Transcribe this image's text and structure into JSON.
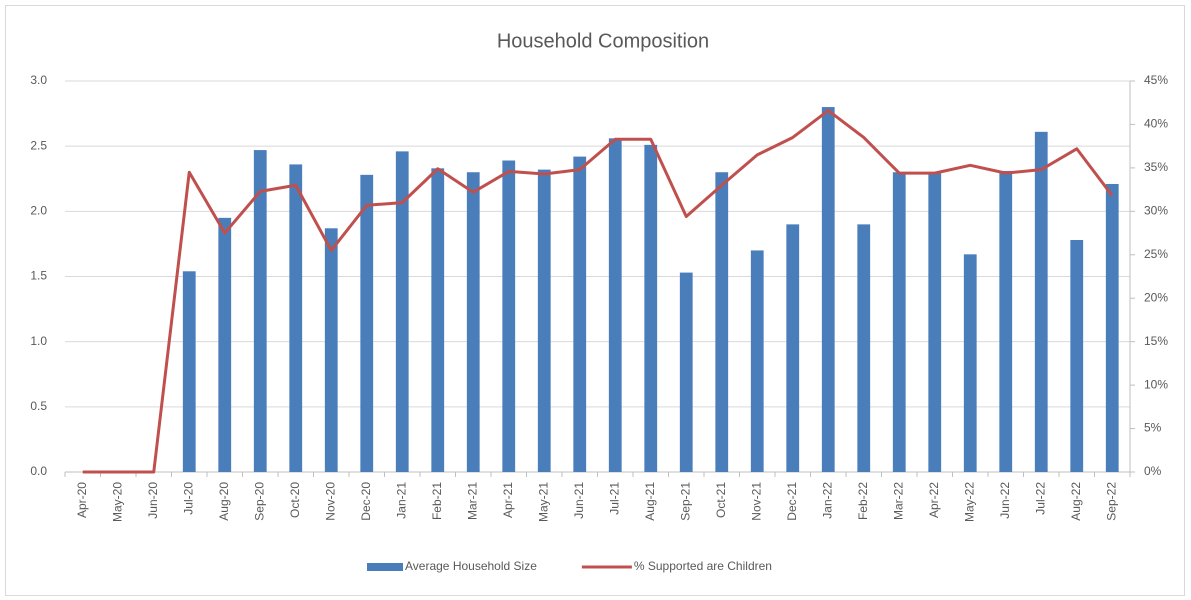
{
  "chart_data": {
    "type": "bar-line",
    "title": "Household Composition",
    "categories": [
      "Apr-20",
      "May-20",
      "Jun-20",
      "Jul-20",
      "Aug-20",
      "Sep-20",
      "Oct-20",
      "Nov-20",
      "Dec-20",
      "Jan-21",
      "Feb-21",
      "Mar-21",
      "Apr-21",
      "May-21",
      "Jun-21",
      "Jul-21",
      "Aug-21",
      "Sep-21",
      "Oct-21",
      "Nov-21",
      "Dec-21",
      "Jan-22",
      "Feb-22",
      "Mar-22",
      "Apr-22",
      "May-22",
      "Jun-22",
      "Jul-22",
      "Aug-22",
      "Sep-22"
    ],
    "series": [
      {
        "name": "Average Household Size",
        "type": "bar",
        "color": "#4a7ebb",
        "values": [
          0,
          0,
          0,
          1.54,
          1.95,
          2.47,
          2.36,
          1.87,
          2.28,
          2.46,
          2.33,
          2.3,
          2.39,
          2.32,
          2.42,
          2.56,
          2.51,
          1.53,
          2.3,
          1.7,
          1.9,
          2.8,
          1.9,
          2.3,
          2.3,
          1.67,
          2.31,
          2.61,
          1.78,
          2.21
        ]
      },
      {
        "name": "% Supported are Children",
        "type": "line",
        "axis": "y2",
        "color": "#c0504d",
        "values": [
          0,
          0,
          0,
          34.5,
          27.5,
          32.3,
          33.0,
          25.5,
          30.7,
          31.0,
          34.9,
          32.2,
          34.6,
          34.3,
          34.8,
          38.3,
          38.3,
          29.4,
          33.0,
          36.5,
          38.5,
          41.6,
          38.5,
          34.4,
          34.4,
          35.3,
          34.4,
          34.8,
          37.2,
          31.8
        ]
      }
    ],
    "ylim": [
      0,
      3
    ],
    "yticks": [
      {
        "value": 0,
        "label": "0.0"
      },
      {
        "value": 0.5,
        "label": "0.5"
      },
      {
        "value": 1,
        "label": "1.0"
      },
      {
        "value": 1.5,
        "label": "1.5"
      },
      {
        "value": 2,
        "label": "2.0"
      },
      {
        "value": 2.5,
        "label": "2.5"
      },
      {
        "value": 3,
        "label": "3.0"
      }
    ],
    "y2lim": [
      0,
      45
    ],
    "y2ticks": [
      {
        "value": 0,
        "label": "0%"
      },
      {
        "value": 5,
        "label": "5%"
      },
      {
        "value": 10,
        "label": "10%"
      },
      {
        "value": 15,
        "label": "15%"
      },
      {
        "value": 20,
        "label": "20%"
      },
      {
        "value": 25,
        "label": "25%"
      },
      {
        "value": 30,
        "label": "30%"
      },
      {
        "value": 35,
        "label": "35%"
      },
      {
        "value": 40,
        "label": "40%"
      },
      {
        "value": 45,
        "label": "45%"
      }
    ],
    "grid": true,
    "legend": "bottom"
  }
}
